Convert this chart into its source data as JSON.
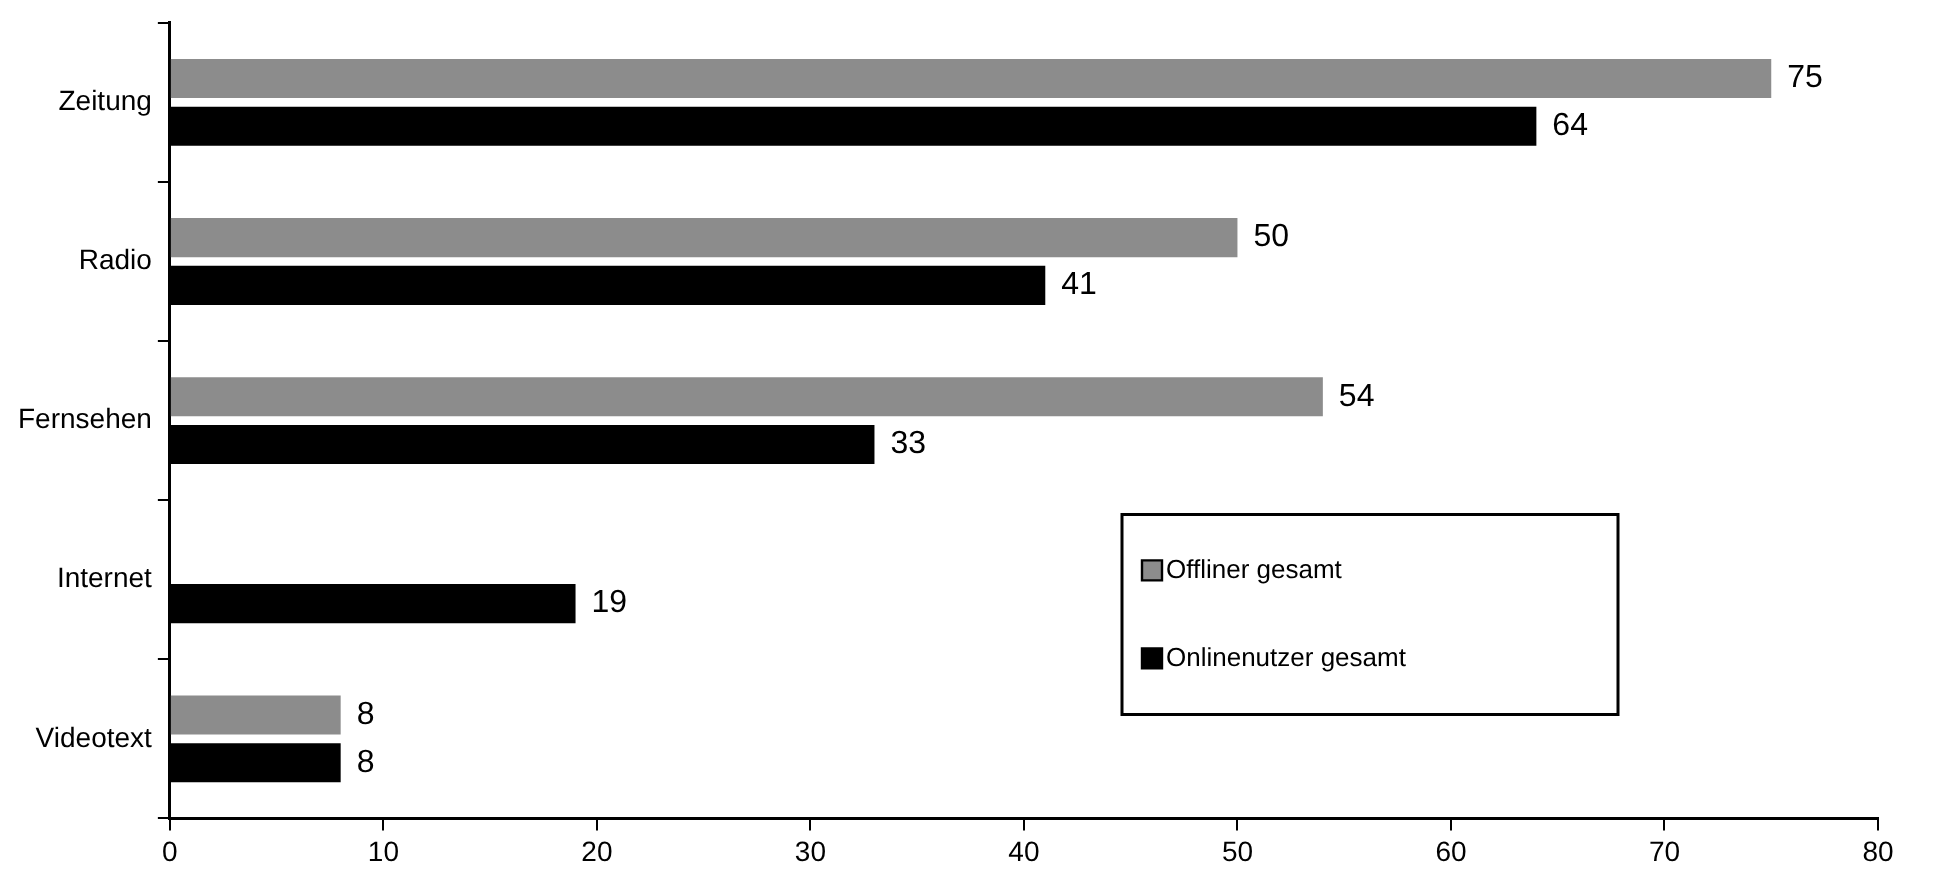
{
  "chart_data": {
    "type": "bar",
    "orientation": "horizontal",
    "categories": [
      "Zeitung",
      "Radio",
      "Fernsehen",
      "Internet",
      "Videotext"
    ],
    "series": [
      {
        "name": "Offliner gesamt",
        "color": "#8c8c8c",
        "values": [
          75,
          50,
          54,
          null,
          8
        ]
      },
      {
        "name": "Onlinenutzer gesamt",
        "color": "#000000",
        "values": [
          64,
          41,
          33,
          19,
          8
        ]
      }
    ],
    "xlim": [
      0,
      80
    ],
    "xticks": [
      0,
      10,
      20,
      30,
      40,
      50,
      60,
      70,
      80
    ],
    "grid": false,
    "legend": "bottom right",
    "data_labels": true
  }
}
